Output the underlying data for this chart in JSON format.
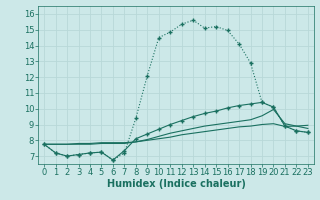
{
  "xlabel": "Humidex (Indice chaleur)",
  "background_color": "#cce8e8",
  "grid_color": "#b8d8d8",
  "line_color": "#1a7060",
  "xlim": [
    -0.5,
    23.5
  ],
  "ylim": [
    6.5,
    16.5
  ],
  "xticks": [
    0,
    1,
    2,
    3,
    4,
    5,
    6,
    7,
    8,
    9,
    10,
    11,
    12,
    13,
    14,
    15,
    16,
    17,
    18,
    19,
    20,
    21,
    22,
    23
  ],
  "yticks": [
    7,
    8,
    9,
    10,
    11,
    12,
    13,
    14,
    15,
    16
  ],
  "series1_x": [
    0,
    1,
    2,
    3,
    4,
    5,
    6,
    7,
    8,
    9,
    10,
    11,
    12,
    13,
    14,
    15,
    16,
    17,
    18,
    19,
    20,
    21,
    22,
    23
  ],
  "series1_y": [
    7.75,
    7.2,
    7.0,
    7.1,
    7.2,
    7.25,
    6.75,
    7.2,
    9.4,
    12.1,
    14.5,
    14.85,
    15.35,
    15.6,
    15.1,
    15.2,
    14.95,
    14.1,
    12.9,
    10.4,
    10.1,
    8.9,
    8.6,
    8.5
  ],
  "series2_x": [
    0,
    1,
    2,
    3,
    4,
    5,
    6,
    7,
    8,
    9,
    10,
    11,
    12,
    13,
    14,
    15,
    16,
    17,
    18,
    19,
    20,
    21,
    22,
    23
  ],
  "series2_y": [
    7.75,
    7.2,
    7.0,
    7.1,
    7.2,
    7.25,
    6.75,
    7.35,
    8.1,
    8.4,
    8.7,
    9.0,
    9.25,
    9.5,
    9.7,
    9.85,
    10.05,
    10.2,
    10.3,
    10.4,
    10.1,
    8.9,
    8.6,
    8.5
  ],
  "series3_x": [
    0,
    1,
    2,
    3,
    4,
    5,
    6,
    7,
    8,
    9,
    10,
    11,
    12,
    13,
    14,
    15,
    16,
    17,
    18,
    19,
    20,
    21,
    22,
    23
  ],
  "series3_y": [
    7.75,
    7.75,
    7.75,
    7.75,
    7.75,
    7.8,
    7.8,
    7.8,
    7.9,
    8.0,
    8.1,
    8.2,
    8.35,
    8.45,
    8.55,
    8.65,
    8.75,
    8.85,
    8.9,
    9.0,
    9.05,
    8.88,
    8.9,
    8.95
  ],
  "series4_x": [
    0,
    1,
    2,
    3,
    4,
    5,
    6,
    7,
    8,
    9,
    10,
    11,
    12,
    13,
    14,
    15,
    16,
    17,
    18,
    19,
    20,
    21,
    22,
    23
  ],
  "series4_y": [
    7.75,
    7.75,
    7.75,
    7.8,
    7.8,
    7.85,
    7.85,
    7.85,
    7.9,
    8.05,
    8.25,
    8.45,
    8.6,
    8.75,
    8.9,
    9.0,
    9.1,
    9.2,
    9.3,
    9.55,
    9.95,
    9.05,
    8.9,
    8.75
  ],
  "fontsize_axis": 6,
  "fontsize_label": 7
}
